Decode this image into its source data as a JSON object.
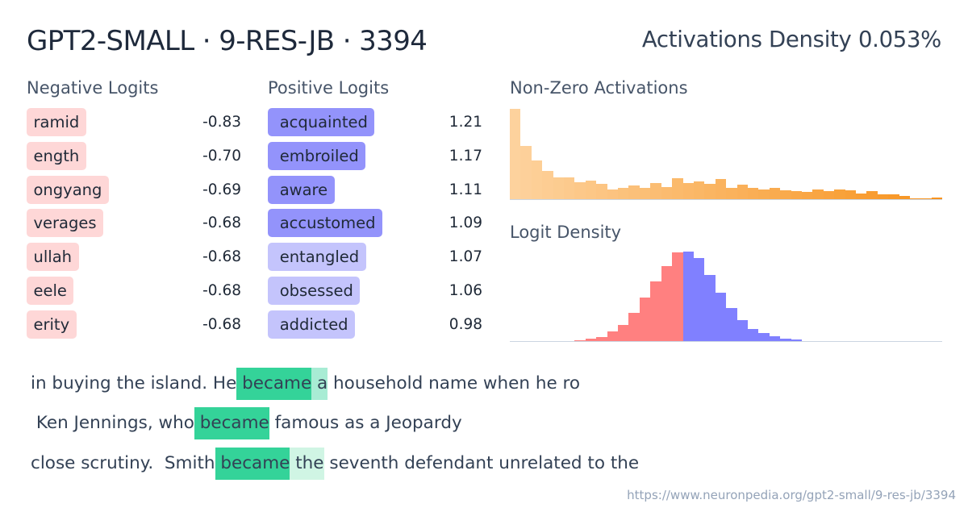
{
  "header": {
    "title": "GPT2-SMALL · 9-RES-JB · 3394",
    "density_label": "Activations Density 0.053%"
  },
  "negative_logits": {
    "title": "Negative Logits",
    "items": [
      {
        "token": "ramid",
        "value": "-0.83",
        "color": "#fed7d7"
      },
      {
        "token": "ength",
        "value": "-0.70",
        "color": "#fed7d7"
      },
      {
        "token": "ongyang",
        "value": "-0.69",
        "color": "#fed7d7"
      },
      {
        "token": "verages",
        "value": "-0.68",
        "color": "#fed7d7"
      },
      {
        "token": "ullah",
        "value": "-0.68",
        "color": "#fed7d7"
      },
      {
        "token": "eele",
        "value": "-0.68",
        "color": "#fed7d7"
      },
      {
        "token": "erity",
        "value": "-0.68",
        "color": "#fed7d7"
      }
    ]
  },
  "positive_logits": {
    "title": "Positive Logits",
    "items": [
      {
        "token": " acquainted",
        "value": "1.21",
        "color": "#9393fb"
      },
      {
        "token": " embroiled",
        "value": "1.17",
        "color": "#9393fb"
      },
      {
        "token": " aware",
        "value": "1.11",
        "color": "#9393fb"
      },
      {
        "token": " accustomed",
        "value": "1.09",
        "color": "#9393fb"
      },
      {
        "token": " entangled",
        "value": "1.07",
        "color": "#c4c4fc"
      },
      {
        "token": " obsessed",
        "value": "1.06",
        "color": "#c4c4fc"
      },
      {
        "token": " addicted",
        "value": "0.98",
        "color": "#c4c4fc"
      }
    ]
  },
  "activations_panel": {
    "title": "Non-Zero Activations"
  },
  "logit_panel": {
    "title": "Logit Density"
  },
  "snippets": [
    {
      "segments": [
        {
          "text": "in buying the island. He",
          "bg": "transparent"
        },
        {
          "text": " became",
          "bg": "#34d399"
        },
        {
          "text": " a",
          "bg": "#a8ecd4"
        },
        {
          "text": " household name when he ro",
          "bg": "transparent"
        }
      ]
    },
    {
      "segments": [
        {
          "text": " Ken Jennings, who",
          "bg": "transparent"
        },
        {
          "text": " became",
          "bg": "#34d399"
        },
        {
          "text": " famous as a Jeopardy",
          "bg": "transparent"
        }
      ]
    },
    {
      "segments": [
        {
          "text": "close scrutiny.  Smith",
          "bg": "transparent"
        },
        {
          "text": " became",
          "bg": "#34d399"
        },
        {
          "text": " the",
          "bg": "#d0f5e4"
        },
        {
          "text": " seventh defendant unrelated to the",
          "bg": "transparent"
        }
      ]
    }
  ],
  "footer": {
    "url": "https://www.neuronpedia.org/gpt2-small/9-res-jb/3394"
  },
  "colors": {
    "negative_token_bg": "#fed7d7",
    "positive_token_strong_bg": "#9393fb",
    "positive_token_weak_bg": "#c4c4fc",
    "activation_strong": "#34d399",
    "histogram_negative": "#ff8080",
    "histogram_positive": "#8080ff",
    "activation_gradient_start": "#fdd29d",
    "activation_gradient_end": "#f7931e"
  },
  "chart_data": [
    {
      "type": "bar",
      "title": "Non-Zero Activations",
      "xlabel": "",
      "ylabel": "",
      "grid": false,
      "legend": "none",
      "bins": 40,
      "values": [
        112,
        66,
        48,
        35,
        27,
        27,
        21,
        23,
        19,
        12,
        14,
        17,
        14,
        20,
        15,
        26,
        20,
        22,
        19,
        25,
        14,
        18,
        14,
        12,
        14,
        11,
        10,
        9,
        12,
        10,
        12,
        11,
        7,
        10,
        6,
        6,
        4,
        1,
        1,
        2
      ],
      "color_mode": "gradient",
      "color_start": "#fdd29d",
      "color_end": "#f7931e"
    },
    {
      "type": "bar",
      "title": "Logit Density",
      "xlabel": "",
      "ylabel": "",
      "grid": false,
      "legend": "none",
      "bins": 40,
      "values": [
        0,
        0,
        0,
        0,
        0,
        0,
        1,
        3,
        5,
        12,
        20,
        35,
        54,
        74,
        93,
        110,
        111,
        103,
        82,
        60,
        41,
        26,
        15,
        10,
        6,
        3,
        2,
        0,
        0,
        0,
        0,
        0,
        0,
        0,
        0,
        0,
        0,
        0,
        0,
        0
      ],
      "color_mode": "split",
      "split_bin": 16,
      "negative_color": "#ff8080",
      "positive_color": "#8080ff"
    }
  ]
}
